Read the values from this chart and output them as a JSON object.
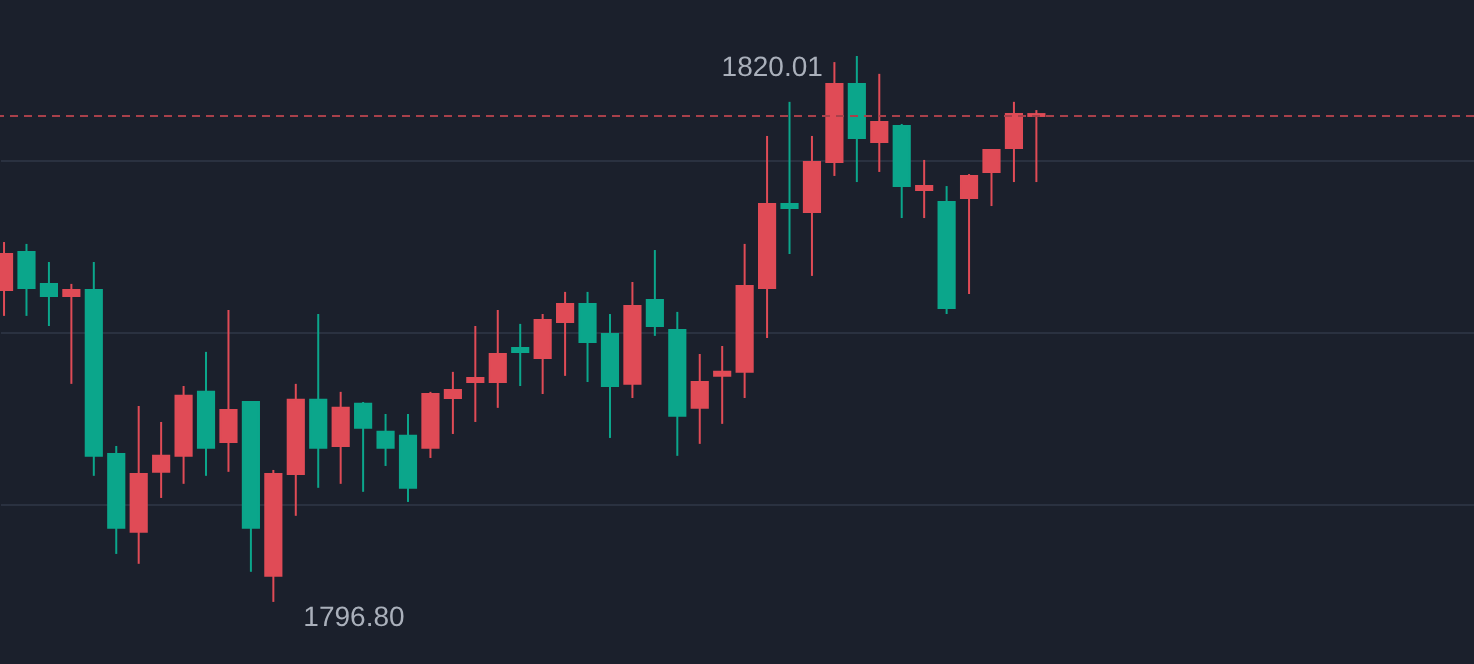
{
  "chart_data": {
    "type": "candlestick",
    "categories": [
      null,
      null,
      null,
      null,
      null,
      null,
      null,
      null,
      null,
      null,
      null,
      null,
      null,
      null,
      null,
      null,
      null,
      null,
      null,
      null,
      null,
      null,
      null,
      null,
      null,
      null,
      null,
      null,
      null,
      null,
      null,
      null,
      null,
      null,
      null,
      null,
      null,
      null,
      null,
      null,
      null,
      null,
      null,
      null,
      null,
      null,
      null
    ],
    "ohlc": [
      [
        1810.06,
        1812.1,
        1808.96,
        1811.59
      ],
      [
        1811.68,
        1812.02,
        1808.96,
        1810.15
      ],
      [
        1810.32,
        1811.25,
        1808.53,
        1809.81
      ],
      [
        1809.81,
        1810.32,
        1806.07,
        1810.06
      ],
      [
        1810.06,
        1811.25,
        1802.16,
        1803.01
      ],
      [
        1803.09,
        1803.43,
        1798.84,
        1799.95
      ],
      [
        1799.78,
        1805.13,
        1798.42,
        1802.24
      ],
      [
        1802.33,
        1804.45,
        1801.22,
        1803.01
      ],
      [
        1803.01,
        1805.98,
        1801.82,
        1805.56
      ],
      [
        1805.73,
        1807.43,
        1802.16,
        1803.35
      ],
      [
        1803.6,
        1809.21,
        1802.33,
        1804.96
      ],
      [
        1805.3,
        1805.3,
        1798.08,
        1799.95
      ],
      [
        1797.91,
        1802.41,
        1796.8,
        1802.24
      ],
      [
        1802.24,
        1806.07,
        1800.46,
        1805.39
      ],
      [
        1805.39,
        1809.04,
        1801.65,
        1803.35
      ],
      [
        1803.43,
        1805.73,
        1801.82,
        1805.05
      ],
      [
        1805.22,
        1805.3,
        1801.48,
        1804.2
      ],
      [
        1804.03,
        1804.79,
        1802.58,
        1803.35
      ],
      [
        1803.86,
        1804.79,
        1801.05,
        1801.65
      ],
      [
        1803.35,
        1805.73,
        1802.92,
        1805.64
      ],
      [
        1805.47,
        1806.58,
        1803.94,
        1805.81
      ],
      [
        1806.15,
        1808.53,
        1804.45,
        1806.32
      ],
      [
        1806.15,
        1809.21,
        1805.05,
        1807.34
      ],
      [
        1807.6,
        1808.62,
        1805.98,
        1807.43
      ],
      [
        1807.17,
        1809.04,
        1805.64,
        1808.79
      ],
      [
        1808.7,
        1809.98,
        1806.41,
        1809.47
      ],
      [
        1809.47,
        1809.98,
        1806.15,
        1807.85
      ],
      [
        1808.19,
        1809.04,
        1803.77,
        1805.98
      ],
      [
        1806.07,
        1810.4,
        1805.47,
        1809.38
      ],
      [
        1809.64,
        1811.76,
        1808.11,
        1808.53
      ],
      [
        1808.36,
        1809.13,
        1803.01,
        1804.71
      ],
      [
        1805.05,
        1807.34,
        1803.52,
        1806.15
      ],
      [
        1806.41,
        1807.68,
        1804.37,
        1806.58
      ],
      [
        1806.58,
        1812.02,
        1805.47,
        1810.23
      ],
      [
        1810.15,
        1816.61,
        1808.02,
        1813.72
      ],
      [
        1813.72,
        1818.06,
        1811.59,
        1813.55
      ],
      [
        1813.38,
        1816.61,
        1810.66,
        1815.5
      ],
      [
        1815.5,
        1819.75,
        1814.91,
        1818.82
      ],
      [
        1818.82,
        1820.01,
        1814.65,
        1816.52
      ],
      [
        1816.35,
        1819.25,
        1815.08,
        1817.2
      ],
      [
        1817.03,
        1817.12,
        1813.12,
        1814.48
      ],
      [
        1814.31,
        1815.59,
        1813.12,
        1814.48
      ],
      [
        1813.8,
        1814.48,
        1809.04,
        1809.3
      ],
      [
        1813.97,
        1814.99,
        1809.89,
        1814.91
      ],
      [
        1815.08,
        1816.01,
        1813.63,
        1816.01
      ],
      [
        1816.1,
        1818.06,
        1814.65,
        1817.54
      ],
      [
        1817.46,
        1817.71,
        1814.65,
        1817.54
      ]
    ],
    "colors": [
      "#e04b56",
      "#0ba68b",
      "#0ba68b",
      "#e04b56",
      "#0ba68b",
      "#0ba68b",
      "#e04b56",
      "#e04b56",
      "#e04b56",
      "#0ba68b",
      "#e04b56",
      "#0ba68b",
      "#e04b56",
      "#e04b56",
      "#0ba68b",
      "#e04b56",
      "#0ba68b",
      "#0ba68b",
      "#0ba68b",
      "#e04b56",
      "#e04b56",
      "#e04b56",
      "#e04b56",
      "#0ba68b",
      "#e04b56",
      "#e04b56",
      "#0ba68b",
      "#0ba68b",
      "#e04b56",
      "#0ba68b",
      "#0ba68b",
      "#e04b56",
      "#e04b56",
      "#e04b56",
      "#e04b56",
      "#0ba68b",
      "#e04b56",
      "#e04b56",
      "#0ba68b",
      "#e04b56",
      "#0ba68b",
      "#e04b56",
      "#0ba68b",
      "#e04b56",
      "#e04b56",
      "#e04b56",
      "#e04b56"
    ],
    "ylim": [
      1794.16,
      1822.39
    ],
    "yticks": [
      {
        "value": 1800.97,
        "label": null
      },
      {
        "value": 1808.28,
        "label": null
      },
      {
        "value": 1815.59,
        "label": null
      }
    ],
    "grid": "y",
    "ref_lines": [
      {
        "axis": "y",
        "value": 1817.46,
        "color": "#a8404a",
        "line_style": "dashed"
      }
    ],
    "annotations": [
      "1820.01",
      "1796.80"
    ]
  }
}
